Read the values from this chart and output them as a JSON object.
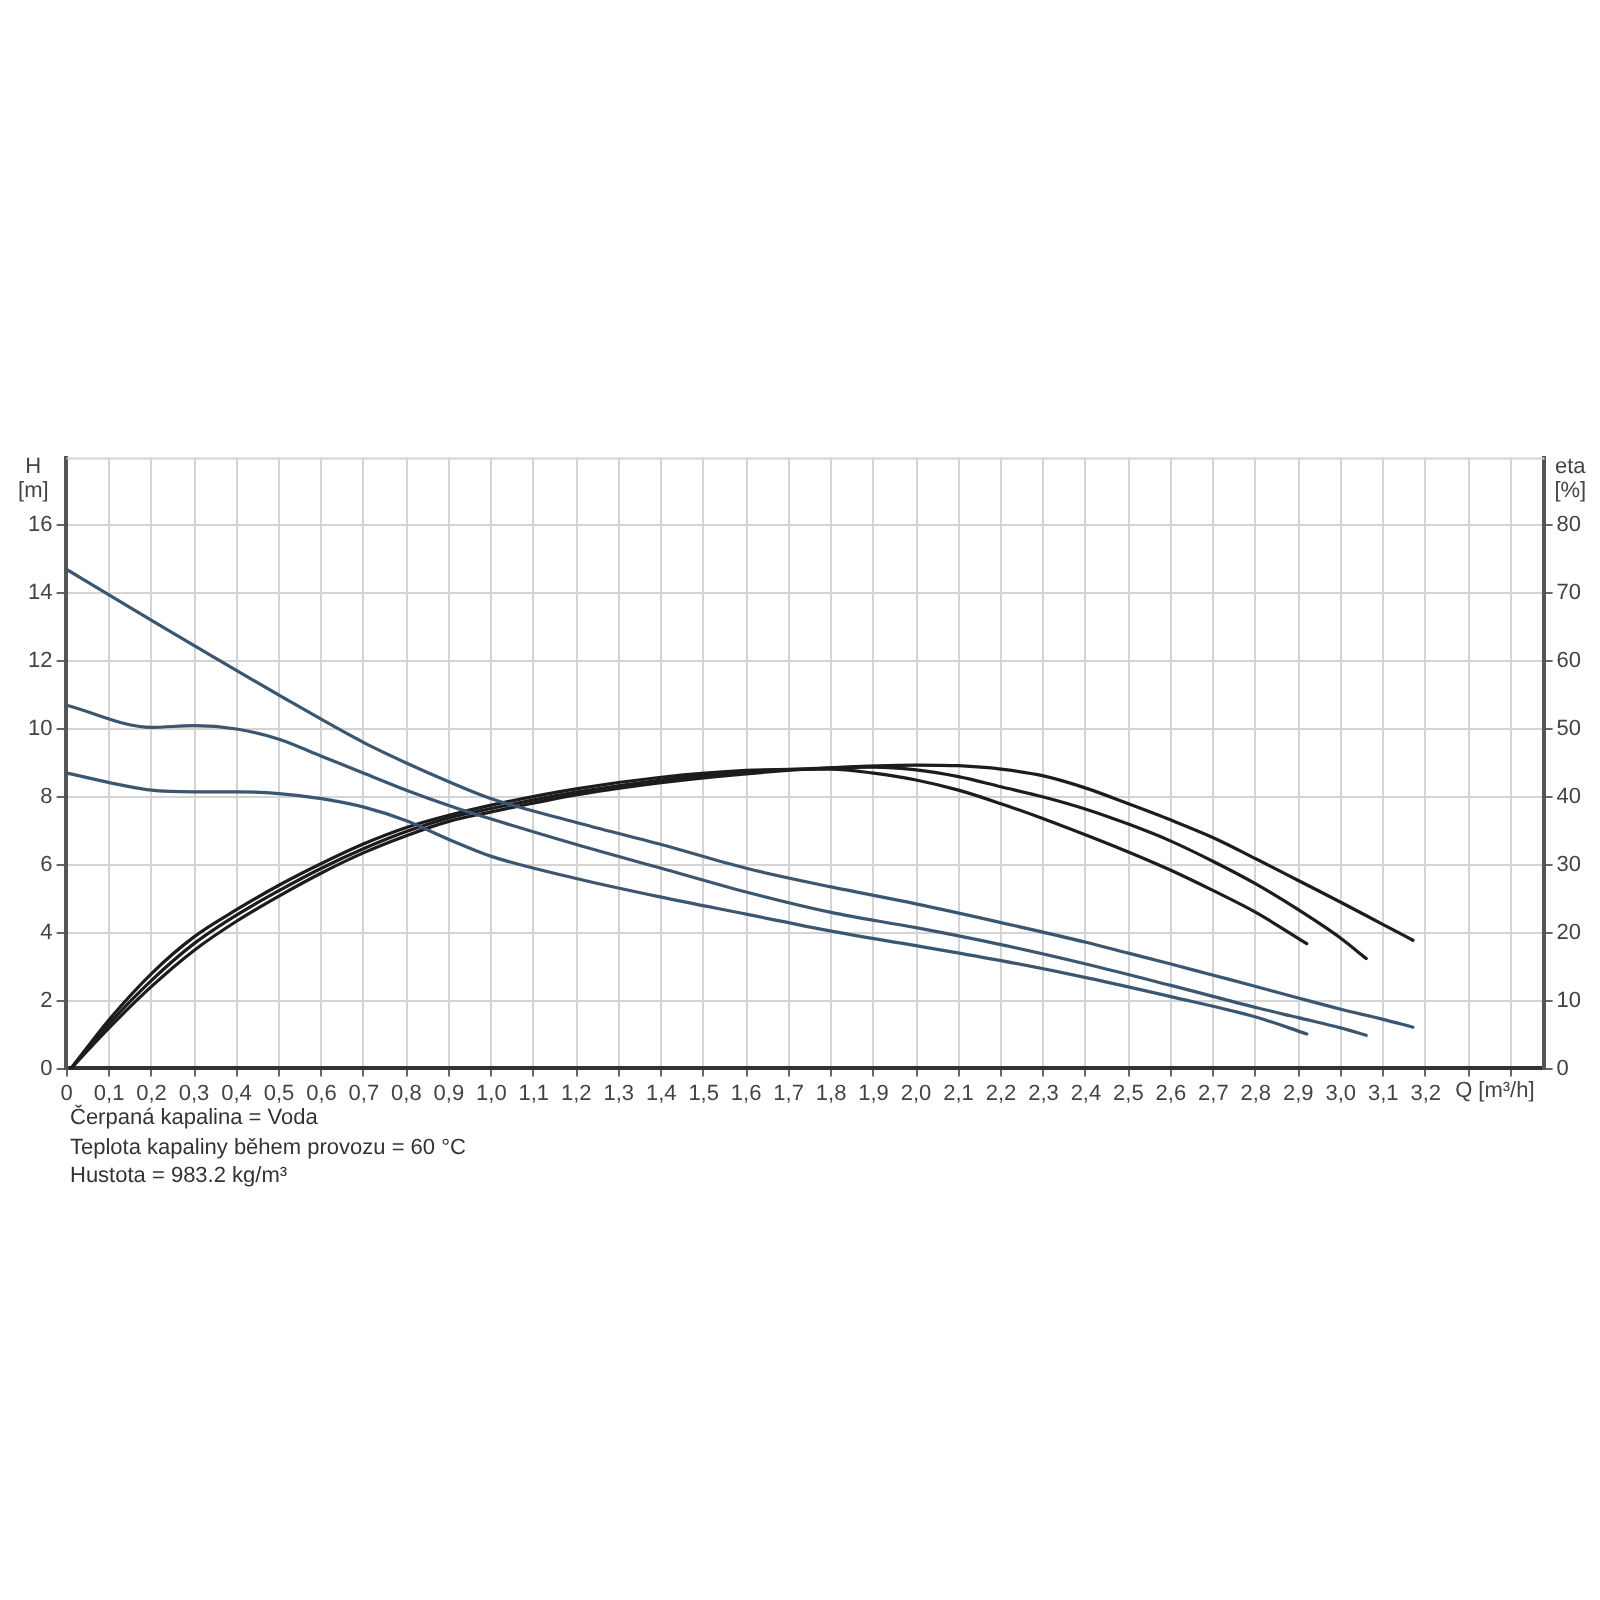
{
  "chart_data": {
    "type": "line",
    "xlabel": "Q [m³/h]",
    "ylabel": "H [m]",
    "y2label": "eta [%]",
    "xlim": [
      0,
      3.48
    ],
    "xticks": [
      0,
      {
        "value": 0.1,
        "label": "0,1"
      },
      {
        "value": 0.2,
        "label": "0,2"
      },
      {
        "value": 0.3,
        "label": "0,3"
      },
      {
        "value": 0.4,
        "label": "0,4"
      },
      {
        "value": 0.5,
        "label": "0,5"
      },
      {
        "value": 0.6,
        "label": "0,6"
      },
      {
        "value": 0.7,
        "label": "0,7"
      },
      {
        "value": 0.8,
        "label": "0,8"
      },
      {
        "value": 0.9,
        "label": "0,9"
      },
      {
        "value": 1.0,
        "label": "1,0"
      },
      {
        "value": 1.1,
        "label": "1,1"
      },
      {
        "value": 1.2,
        "label": "1,2"
      },
      {
        "value": 1.3,
        "label": "1,3"
      },
      {
        "value": 1.4,
        "label": "1,4"
      },
      {
        "value": 1.5,
        "label": "1,5"
      },
      {
        "value": 1.6,
        "label": "1,6"
      },
      {
        "value": 1.7,
        "label": "1,7"
      },
      {
        "value": 1.8,
        "label": "1,8"
      },
      {
        "value": 1.9,
        "label": "1,9"
      },
      {
        "value": 2.0,
        "label": "2,0"
      },
      {
        "value": 2.1,
        "label": "2,1"
      },
      {
        "value": 2.2,
        "label": "2,2"
      },
      {
        "value": 2.3,
        "label": "2,3"
      },
      {
        "value": 2.4,
        "label": "2,4"
      },
      {
        "value": 2.5,
        "label": "2,5"
      },
      {
        "value": 2.6,
        "label": "2,6"
      },
      {
        "value": 2.7,
        "label": "2,7"
      },
      {
        "value": 2.8,
        "label": "2,8"
      },
      {
        "value": 2.9,
        "label": "2,9"
      },
      {
        "value": 3.0,
        "label": "3,0"
      },
      {
        "value": 3.1,
        "label": "3,1"
      },
      {
        "value": 3.2,
        "label": "3,2"
      },
      {
        "value": 3.3,
        "label": null
      },
      {
        "value": 3.4,
        "label": null
      }
    ],
    "ylim": [
      0,
      18
    ],
    "yticks": [
      0,
      2,
      4,
      6,
      8,
      10,
      12,
      14,
      16
    ],
    "y2lim": [
      0,
      90
    ],
    "y2ticks": [
      0,
      10,
      20,
      30,
      40,
      50,
      60,
      70,
      80
    ],
    "grid": true,
    "marker": "none",
    "line_style": "solid",
    "series": [
      {
        "color": "#3b5670",
        "x": [
          0,
          0.2,
          0.5,
          0.7,
          0.8,
          0.9,
          1.0,
          1.2,
          1.4,
          1.6,
          1.8,
          2.0,
          2.2,
          2.4,
          2.5,
          2.6,
          2.7,
          2.8,
          2.9,
          3.0,
          3.1,
          3.17
        ],
        "values": [
          14.7,
          13.2,
          11.0,
          9.6,
          9.0,
          8.45,
          7.95,
          7.25,
          6.6,
          5.9,
          5.35,
          4.85,
          4.3,
          3.72,
          3.4,
          3.08,
          2.75,
          2.42,
          2.08,
          1.75,
          1.45,
          1.22
        ]
      },
      {
        "color": "#3b5670",
        "x": [
          0,
          0.2,
          0.3,
          0.4,
          0.5,
          0.6,
          0.7,
          0.8,
          0.9,
          1.0,
          1.2,
          1.4,
          1.6,
          1.8,
          2.0,
          2.2,
          2.4,
          2.6,
          2.8,
          2.9,
          3.0,
          3.06
        ],
        "values": [
          10.7,
          10.05,
          10.1,
          10.0,
          9.7,
          9.2,
          8.7,
          8.2,
          7.75,
          7.35,
          6.6,
          5.9,
          5.2,
          4.6,
          4.15,
          3.65,
          3.08,
          2.45,
          1.8,
          1.5,
          1.2,
          0.98
        ]
      },
      {
        "color": "#3b5670",
        "x": [
          0,
          0.2,
          0.3,
          0.4,
          0.5,
          0.6,
          0.7,
          0.8,
          0.9,
          1.0,
          1.2,
          1.4,
          1.6,
          1.8,
          2.0,
          2.2,
          2.4,
          2.6,
          2.8,
          2.92
        ],
        "values": [
          8.7,
          8.2,
          8.15,
          8.15,
          8.1,
          7.95,
          7.7,
          7.3,
          6.75,
          6.25,
          5.6,
          5.05,
          4.55,
          4.05,
          3.62,
          3.18,
          2.68,
          2.12,
          1.52,
          1.02
        ]
      },
      {
        "color": "#1c1c1c",
        "axis": "y2",
        "x": [
          0.01,
          0.1,
          0.2,
          0.3,
          0.4,
          0.5,
          0.6,
          0.7,
          0.8,
          0.9,
          1.0,
          1.2,
          1.4,
          1.6,
          1.8,
          1.9,
          2.0,
          2.1,
          2.2,
          2.3,
          2.4,
          2.5,
          2.6,
          2.7,
          2.8,
          2.92
        ],
        "values": [
          0,
          7.2,
          14,
          19.4,
          23.4,
          27,
          30.2,
          33.1,
          35.5,
          37.3,
          38.8,
          41.2,
          42.9,
          43.9,
          44.1,
          43.5,
          42.5,
          41,
          39,
          36.8,
          34.4,
          31.9,
          29.2,
          26.2,
          23,
          18.4
        ]
      },
      {
        "color": "#1c1c1c",
        "axis": "y2",
        "x": [
          0.01,
          0.1,
          0.2,
          0.3,
          0.4,
          0.5,
          0.6,
          0.7,
          0.8,
          0.9,
          1.0,
          1.2,
          1.4,
          1.6,
          1.8,
          1.9,
          2.0,
          2.1,
          2.2,
          2.3,
          2.4,
          2.5,
          2.6,
          2.7,
          2.8,
          2.9,
          3.0,
          3.06
        ],
        "values": [
          0,
          6.6,
          13,
          18.4,
          22.6,
          26.2,
          29.5,
          32.4,
          34.9,
          36.9,
          38.3,
          40.7,
          42.5,
          43.7,
          44.3,
          44.4,
          44,
          43,
          41.5,
          40,
          38.2,
          36,
          33.5,
          30.5,
          27.2,
          23.4,
          19.2,
          16.2
        ]
      },
      {
        "color": "#1c1c1c",
        "axis": "y2",
        "x": [
          0.01,
          0.1,
          0.2,
          0.3,
          0.4,
          0.5,
          0.6,
          0.7,
          0.8,
          0.9,
          1.0,
          1.2,
          1.4,
          1.6,
          1.8,
          2.0,
          2.1,
          2.2,
          2.3,
          2.4,
          2.5,
          2.6,
          2.7,
          2.8,
          2.9,
          3.0,
          3.1,
          3.17
        ],
        "values": [
          0,
          6,
          12.1,
          17.4,
          21.7,
          25.4,
          28.8,
          31.8,
          34.3,
          36.4,
          37.8,
          40.3,
          42.1,
          43.4,
          44.3,
          44.7,
          44.6,
          44.1,
          43.1,
          41.3,
          39,
          36.6,
          34,
          30.9,
          27.7,
          24.5,
          21.2,
          18.9
        ]
      }
    ],
    "annotations": [
      "Čerpaná kapalina = Voda",
      "Teplota kapaliny během provozu = 60 °C",
      "Hustota = 983.2 kg/m³"
    ]
  }
}
